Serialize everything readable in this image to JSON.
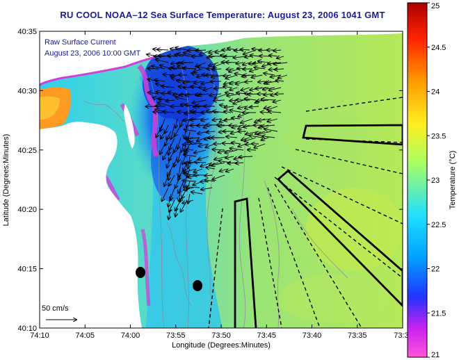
{
  "title": "RU COOL  NOAA–12  Sea Surface Temperature:  August 23, 2006 1041 GMT",
  "legend": {
    "line1": "Raw Surface Current",
    "line2": "August 23, 2006 10:00 GMT",
    "scale_label": "50 cm/s"
  },
  "axes": {
    "xlabel": "Longitude (Degrees:Minutes)",
    "ylabel": "Latitude (Degrees:Minutes)",
    "x_ticks": [
      "74:10",
      "74:05",
      "74:00",
      "73:55",
      "73:50",
      "73:45",
      "73:40",
      "73:35",
      "73:3"
    ],
    "y_ticks": [
      "40:35",
      "40:30",
      "40:25",
      "40:20",
      "40:15",
      "40:10"
    ]
  },
  "colorbar": {
    "label": "Temperature (°C)",
    "ticks": [
      "25",
      "24.5",
      "24",
      "23.5",
      "23",
      "22.5",
      "22",
      "21.5",
      "21"
    ],
    "range": [
      21,
      25
    ],
    "colors": [
      "#ff55dd",
      "#cc22ee",
      "#2233ff",
      "#00a0ff",
      "#20e0ff",
      "#aaff60",
      "#ffee20",
      "#ff9900",
      "#ff2200",
      "#aa0000"
    ]
  },
  "colors": {
    "land": "#ffffff",
    "water_warm": "#b4e860",
    "water_mid": "#78dc9a",
    "water_cool": "#28c8ee",
    "water_cold": "#1050e0",
    "upwelling_edge": "#d040d8",
    "title": "#1a1a9a"
  }
}
